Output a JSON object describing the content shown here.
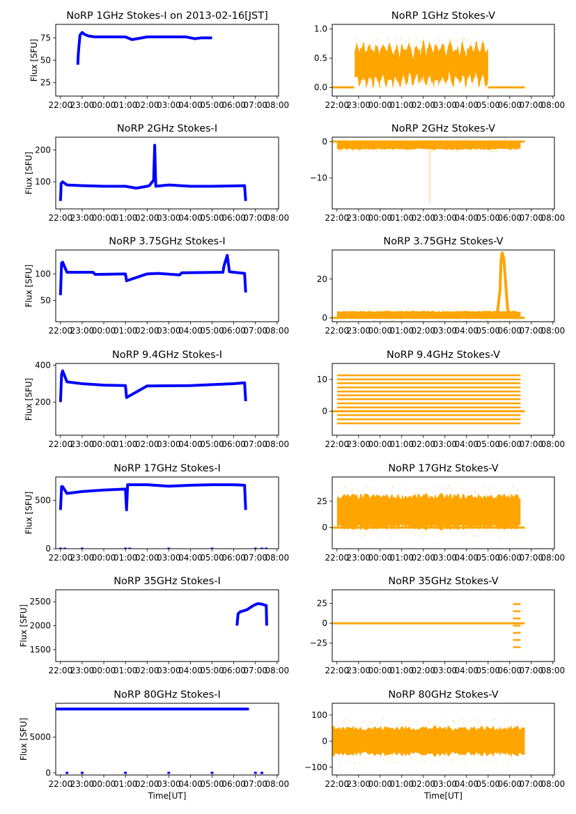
{
  "figure": {
    "xlabel": "Time[UT]",
    "ylabel": "Flux [SFU]",
    "x_tick_labels": [
      "22:00",
      "23:00",
      "00:00",
      "01:00",
      "02:00",
      "03:00",
      "04:00",
      "05:00",
      "06:00",
      "07:00",
      "08:00"
    ],
    "colors": {
      "stokes_i": "#0000ff",
      "stokes_v": "#ffa500"
    }
  },
  "chart_data": [
    {
      "type": "scatter",
      "title": "NoRP 1GHz Stokes-I on 2013-02-16[JST]",
      "ylabel": "Flux [SFU]",
      "xlabel": "",
      "xlim": [
        -0.22,
        10.07
      ],
      "ylim": [
        10,
        90
      ],
      "yticks": [
        25,
        50,
        75
      ],
      "color": "#0000ff",
      "series": [
        {
          "name": "1GHz I",
          "x": [
            0.8,
            0.82,
            0.85,
            0.9,
            1.0,
            1.1,
            1.3,
            1.6,
            2.0,
            3.0,
            3.3,
            4.0,
            5.0,
            5.8,
            6.2,
            6.5,
            7.0
          ],
          "y": [
            45,
            56,
            65,
            78,
            81,
            79,
            77,
            76,
            76,
            76,
            73,
            76,
            76,
            76,
            74,
            75,
            75
          ]
        }
      ]
    },
    {
      "type": "scatter",
      "title": "NoRP 1GHz Stokes-V",
      "ylabel": "",
      "xlabel": "",
      "xlim": [
        -0.22,
        10.07
      ],
      "ylim": [
        -0.15,
        1.08
      ],
      "yticks": [
        0.0,
        0.5,
        1.0
      ],
      "yticklabels": [
        "0.0",
        "0.5",
        "1.0"
      ],
      "color": "#ffa500",
      "series": [
        {
          "name": "1GHz V",
          "band": {
            "x_start": 0.82,
            "x_end": 7.0,
            "center": 0.4,
            "spread": 0.3
          },
          "flat": [
            [
              -0.2,
              0.8,
              0.0
            ],
            [
              7.0,
              8.7,
              0.0
            ]
          ]
        }
      ]
    },
    {
      "type": "scatter",
      "title": "NoRP 2GHz Stokes-I",
      "ylabel": "Flux [SFU]",
      "xlabel": "",
      "xlim": [
        -0.22,
        10.07
      ],
      "ylim": [
        15,
        240
      ],
      "yticks": [
        100,
        200
      ],
      "color": "#0000ff",
      "series": [
        {
          "name": "2GHz I",
          "x": [
            0.0,
            0.03,
            0.1,
            0.3,
            1.0,
            2.0,
            3.0,
            3.5,
            4.0,
            4.1,
            4.3,
            4.35,
            4.4,
            5.0,
            6.0,
            7.0,
            8.0,
            8.5,
            8.55
          ],
          "y": [
            40,
            95,
            100,
            90,
            88,
            86,
            86,
            80,
            86,
            88,
            105,
            215,
            86,
            90,
            86,
            86,
            87,
            88,
            40
          ]
        }
      ]
    },
    {
      "type": "scatter",
      "title": "NoRP 2GHz Stokes-V",
      "ylabel": "",
      "xlabel": "",
      "xlim": [
        -0.22,
        10.07
      ],
      "ylim": [
        -18.5,
        1.2
      ],
      "yticks": [
        -10,
        0
      ],
      "yticklabels": [
        "−10",
        "0"
      ],
      "color": "#ffa500",
      "series": [
        {
          "name": "2GHz V",
          "band": {
            "x_start": 0.0,
            "x_end": 8.5,
            "center": -1.0,
            "spread": 1.2
          },
          "spike": {
            "x": 4.3,
            "y_min": -17
          },
          "flat": [
            [
              -0.2,
              8.7,
              0.0
            ]
          ]
        }
      ]
    },
    {
      "type": "scatter",
      "title": "NoRP 3.75GHz Stokes-I",
      "ylabel": "Flux [SFU]",
      "xlabel": "",
      "xlim": [
        -0.22,
        10.07
      ],
      "ylim": [
        10,
        145
      ],
      "yticks": [
        50,
        100
      ],
      "color": "#0000ff",
      "series": [
        {
          "name": "3.75GHz I",
          "x": [
            0.0,
            0.05,
            0.1,
            0.3,
            1.5,
            1.6,
            3.0,
            3.05,
            4.0,
            4.5,
            5.5,
            5.6,
            7.5,
            7.55,
            7.7,
            7.8,
            8.0,
            8.5,
            8.55
          ],
          "y": [
            60,
            120,
            122,
            103,
            103,
            99,
            100,
            87,
            100,
            101,
            98,
            102,
            103,
            115,
            135,
            104,
            103,
            101,
            65
          ]
        }
      ]
    },
    {
      "type": "scatter",
      "title": "NoRP 3.75GHz Stokes-V",
      "ylabel": "",
      "xlabel": "",
      "xlim": [
        -0.22,
        10.07
      ],
      "ylim": [
        -2,
        35
      ],
      "yticks": [
        0,
        20
      ],
      "color": "#ffa500",
      "series": [
        {
          "name": "3.75GHz V",
          "band": {
            "x_start": 0.0,
            "x_end": 8.5,
            "center": 1.5,
            "spread": 2.0
          },
          "peak": {
            "x": 7.65,
            "y_max": 34
          },
          "flat": [
            [
              -0.2,
              8.7,
              0.0
            ]
          ]
        }
      ]
    },
    {
      "type": "scatter",
      "title": "NoRP 9.4GHz Stokes-I",
      "ylabel": "Flux [SFU]",
      "xlabel": "",
      "xlim": [
        -0.22,
        10.07
      ],
      "ylim": [
        20,
        410
      ],
      "yticks": [
        200,
        400
      ],
      "color": "#0000ff",
      "series": [
        {
          "name": "9.4GHz I",
          "x": [
            0.0,
            0.05,
            0.1,
            0.3,
            1.0,
            2.0,
            3.0,
            3.05,
            4.0,
            6.0,
            8.0,
            8.5,
            8.55
          ],
          "y": [
            200,
            350,
            370,
            310,
            300,
            292,
            290,
            225,
            288,
            290,
            300,
            305,
            205
          ]
        }
      ]
    },
    {
      "type": "scatter",
      "title": "NoRP 9.4GHz Stokes-V",
      "ylabel": "",
      "xlabel": "",
      "xlim": [
        -0.22,
        10.07
      ],
      "ylim": [
        -7.5,
        15
      ],
      "yticks": [
        0,
        10
      ],
      "color": "#ffa500",
      "series": [
        {
          "name": "9.4GHz V",
          "levels": [
            -3.8,
            -2.5,
            -1.2,
            1.2,
            2.5,
            3.8,
            5.0,
            6.2,
            7.5,
            8.8,
            10.0,
            11.3
          ],
          "x_range": [
            0.0,
            8.5
          ],
          "flat": [
            [
              -0.2,
              8.7,
              0.0
            ]
          ]
        }
      ]
    },
    {
      "type": "scatter",
      "title": "NoRP 17GHz Stokes-I",
      "ylabel": "Flux [SFU]",
      "xlabel": "",
      "xlim": [
        -0.22,
        10.07
      ],
      "ylim": [
        0,
        740
      ],
      "yticks": [
        0,
        500
      ],
      "color": "#0000ff",
      "series": [
        {
          "name": "17GHz I",
          "x": [
            0.0,
            0.05,
            0.1,
            0.3,
            1.0,
            2.0,
            3.0,
            3.05,
            3.1,
            4.0,
            5.0,
            6.0,
            7.0,
            8.0,
            8.5,
            8.55
          ],
          "y": [
            400,
            640,
            640,
            570,
            590,
            605,
            615,
            400,
            660,
            660,
            645,
            655,
            660,
            660,
            655,
            400
          ]
        }
      ]
    },
    {
      "type": "scatter",
      "title": "NoRP 17GHz Stokes-V",
      "ylabel": "",
      "xlabel": "",
      "xlim": [
        -0.22,
        10.07
      ],
      "ylim": [
        -20,
        48
      ],
      "yticks": [
        0,
        25
      ],
      "color": "#ffa500",
      "series": [
        {
          "name": "17GHz V",
          "band": {
            "x_start": 0.0,
            "x_end": 8.5,
            "center": 15,
            "spread": 16
          },
          "flat": [
            [
              -0.2,
              8.7,
              0.0
            ]
          ]
        }
      ]
    },
    {
      "type": "scatter",
      "title": "NoRP 35GHz Stokes-I",
      "ylabel": "Flux [SFU]",
      "xlabel": "",
      "xlim": [
        -0.22,
        10.07
      ],
      "ylim": [
        1250,
        2750
      ],
      "yticks": [
        1500,
        2000,
        2500
      ],
      "color": "#0000ff",
      "series": [
        {
          "name": "35GHz I",
          "x": [
            8.15,
            8.2,
            8.3,
            8.6,
            8.9,
            9.1,
            9.3,
            9.5,
            9.52
          ],
          "y": [
            2000,
            2250,
            2290,
            2330,
            2420,
            2460,
            2450,
            2420,
            2000
          ]
        }
      ]
    },
    {
      "type": "scatter",
      "title": "NoRP 35GHz Stokes-V",
      "ylabel": "",
      "xlabel": "",
      "xlim": [
        -0.22,
        10.07
      ],
      "ylim": [
        -48,
        42
      ],
      "yticks": [
        -25,
        0,
        25
      ],
      "yticklabels": [
        "−25",
        "0",
        "25"
      ],
      "color": "#ffa500",
      "series": [
        {
          "name": "35GHz V",
          "levels": [
            -30,
            -21,
            -12,
            -3,
            6,
            15,
            24
          ],
          "x_range": [
            8.15,
            8.5
          ],
          "flat": [
            [
              -0.2,
              8.7,
              0.0
            ]
          ]
        }
      ]
    },
    {
      "type": "scatter",
      "title": "NoRP 80GHz Stokes-I",
      "ylabel": "Flux [SFU]",
      "xlabel": "Time[UT]",
      "xlim": [
        -0.22,
        10.07
      ],
      "ylim": [
        -300,
        9700
      ],
      "yticks": [
        0,
        5000
      ],
      "color": "#0000ff",
      "series": [
        {
          "name": "80GHz I",
          "x": [
            -0.2,
            8.7
          ],
          "y": [
            8900,
            8900
          ],
          "zero_dots_x": [
            0.3,
            1.0,
            3.0,
            5.0,
            7.0,
            9.0,
            9.3
          ]
        }
      ]
    },
    {
      "type": "scatter",
      "title": "NoRP 80GHz Stokes-V",
      "ylabel": "",
      "xlabel": "Time[UT]",
      "xlim": [
        -0.22,
        10.07
      ],
      "ylim": [
        -130,
        145
      ],
      "yticks": [
        -100,
        0,
        100
      ],
      "yticklabels": [
        "−100",
        "0",
        "100"
      ],
      "color": "#ffa500",
      "series": [
        {
          "name": "80GHz V",
          "band": {
            "x_start": -0.2,
            "x_end": 8.7,
            "center": 0,
            "spread": 55
          }
        }
      ]
    }
  ]
}
